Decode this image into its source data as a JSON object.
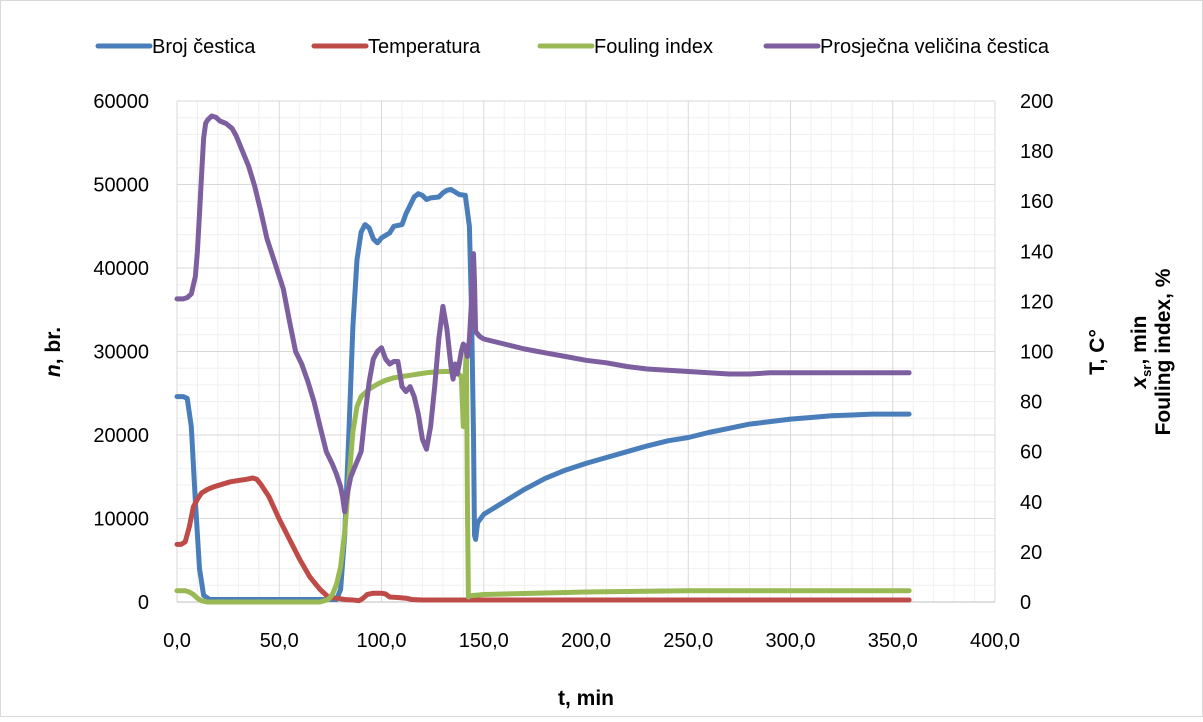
{
  "chart_data": {
    "type": "line",
    "xlabel": "t, min",
    "ylabel_left": {
      "italic": "n",
      "rest": ", br."
    },
    "ylabel_right": {
      "line1": "T, C°",
      "line2_italic": "x",
      "line2_sub": "sr",
      "line2_rest": ", min",
      "line3": "Fouling index, %"
    },
    "x_range": [
      0,
      400
    ],
    "x_ticks": [
      "0,0",
      "50,0",
      "100,0",
      "150,0",
      "200,0",
      "250,0",
      "300,0",
      "350,0",
      "400,0"
    ],
    "y_left_range": [
      0,
      60000
    ],
    "y_left_ticks": [
      "0",
      "10000",
      "20000",
      "30000",
      "40000",
      "50000",
      "60000"
    ],
    "y_right_range": [
      0,
      200
    ],
    "y_right_ticks": [
      "0",
      "20",
      "40",
      "60",
      "80",
      "100",
      "120",
      "140",
      "160",
      "180",
      "200"
    ],
    "grid": true,
    "legend_position": "top",
    "series": [
      {
        "name": "Broj čestica",
        "axis": "left",
        "color": "#4a7ebb",
        "points": [
          [
            0,
            24600
          ],
          [
            3,
            24600
          ],
          [
            5,
            24400
          ],
          [
            7,
            21000
          ],
          [
            9,
            12000
          ],
          [
            11,
            4000
          ],
          [
            13,
            800
          ],
          [
            16,
            300
          ],
          [
            30,
            300
          ],
          [
            50,
            300
          ],
          [
            70,
            300
          ],
          [
            78,
            300
          ],
          [
            80,
            1500
          ],
          [
            82,
            8000
          ],
          [
            84,
            20000
          ],
          [
            86,
            33000
          ],
          [
            88,
            41000
          ],
          [
            90,
            44300
          ],
          [
            92,
            45200
          ],
          [
            94,
            44800
          ],
          [
            96,
            43500
          ],
          [
            98,
            43000
          ],
          [
            100,
            43600
          ],
          [
            104,
            44200
          ],
          [
            106,
            45000
          ],
          [
            110,
            45200
          ],
          [
            112,
            46500
          ],
          [
            116,
            48500
          ],
          [
            118,
            48900
          ],
          [
            120,
            48700
          ],
          [
            122,
            48200
          ],
          [
            124,
            48400
          ],
          [
            128,
            48500
          ],
          [
            130,
            49000
          ],
          [
            132,
            49300
          ],
          [
            134,
            49400
          ],
          [
            136,
            49100
          ],
          [
            138,
            48800
          ],
          [
            141,
            48700
          ],
          [
            143,
            45000
          ],
          [
            144,
            35000
          ],
          [
            145,
            20000
          ],
          [
            145.5,
            8000
          ],
          [
            146,
            7500
          ],
          [
            147,
            9500
          ],
          [
            150,
            10500
          ],
          [
            160,
            12000
          ],
          [
            170,
            13500
          ],
          [
            180,
            14800
          ],
          [
            190,
            15800
          ],
          [
            200,
            16600
          ],
          [
            210,
            17300
          ],
          [
            220,
            18000
          ],
          [
            230,
            18700
          ],
          [
            240,
            19300
          ],
          [
            250,
            19700
          ],
          [
            260,
            20300
          ],
          [
            270,
            20800
          ],
          [
            280,
            21300
          ],
          [
            290,
            21600
          ],
          [
            300,
            21900
          ],
          [
            310,
            22100
          ],
          [
            320,
            22300
          ],
          [
            330,
            22400
          ],
          [
            340,
            22500
          ],
          [
            350,
            22500
          ],
          [
            358,
            22500
          ]
        ]
      },
      {
        "name": "Temperatura",
        "axis": "right",
        "color": "#be4b48",
        "points": [
          [
            0,
            23
          ],
          [
            2,
            23
          ],
          [
            4,
            24
          ],
          [
            6,
            30
          ],
          [
            8,
            38
          ],
          [
            10,
            41
          ],
          [
            12,
            43.5
          ],
          [
            15,
            45
          ],
          [
            18,
            46
          ],
          [
            22,
            47
          ],
          [
            26,
            48
          ],
          [
            30,
            48.5
          ],
          [
            34,
            49
          ],
          [
            37,
            49.5
          ],
          [
            39,
            49
          ],
          [
            41,
            47
          ],
          [
            45,
            42
          ],
          [
            50,
            33
          ],
          [
            55,
            25
          ],
          [
            60,
            17
          ],
          [
            65,
            10
          ],
          [
            70,
            5
          ],
          [
            74,
            2
          ],
          [
            78,
            1.5
          ],
          [
            82,
            1
          ],
          [
            86,
            0.8
          ],
          [
            89,
            0.5
          ],
          [
            91,
            1.5
          ],
          [
            93,
            3
          ],
          [
            96,
            3.5
          ],
          [
            100,
            3.5
          ],
          [
            102,
            3.2
          ],
          [
            104,
            2
          ],
          [
            108,
            1.8
          ],
          [
            112,
            1.5
          ],
          [
            115,
            1
          ],
          [
            120,
            0.8
          ],
          [
            130,
            0.8
          ],
          [
            140,
            0.8
          ],
          [
            150,
            0.8
          ],
          [
            200,
            0.8
          ],
          [
            250,
            0.8
          ],
          [
            300,
            0.8
          ],
          [
            358,
            0.8
          ]
        ]
      },
      {
        "name": "Fouling index",
        "axis": "right",
        "color": "#98b954",
        "points": [
          [
            0,
            4.5
          ],
          [
            2,
            4.5
          ],
          [
            4,
            4.5
          ],
          [
            6,
            4
          ],
          [
            8,
            3
          ],
          [
            10,
            1.5
          ],
          [
            12,
            0.5
          ],
          [
            15,
            0
          ],
          [
            30,
            0
          ],
          [
            50,
            0
          ],
          [
            70,
            0
          ],
          [
            74,
            1
          ],
          [
            76,
            3
          ],
          [
            78,
            7
          ],
          [
            80,
            14
          ],
          [
            82,
            28
          ],
          [
            84,
            48
          ],
          [
            86,
            68
          ],
          [
            88,
            78
          ],
          [
            90,
            82
          ],
          [
            94,
            85
          ],
          [
            98,
            87
          ],
          [
            102,
            88.5
          ],
          [
            106,
            89.5
          ],
          [
            110,
            90
          ],
          [
            114,
            90.5
          ],
          [
            118,
            91
          ],
          [
            122,
            91.5
          ],
          [
            126,
            91.8
          ],
          [
            130,
            92
          ],
          [
            134,
            92
          ],
          [
            137,
            91.5
          ],
          [
            139,
            90
          ],
          [
            140,
            70
          ],
          [
            141,
            92
          ],
          [
            141.5,
            100
          ],
          [
            142,
            40
          ],
          [
            142.5,
            2
          ],
          [
            143.5,
            2.5
          ],
          [
            150,
            3
          ],
          [
            200,
            4
          ],
          [
            250,
            4.5
          ],
          [
            300,
            4.5
          ],
          [
            358,
            4.5
          ]
        ]
      },
      {
        "name": "Prosječna veličina čestica",
        "axis": "right",
        "color": "#7d5fa0",
        "points": [
          [
            0,
            121
          ],
          [
            3,
            121
          ],
          [
            5,
            121.5
          ],
          [
            7,
            123
          ],
          [
            9,
            130
          ],
          [
            10,
            140
          ],
          [
            11,
            155
          ],
          [
            12,
            170
          ],
          [
            13,
            185
          ],
          [
            14,
            191
          ],
          [
            15,
            192.5
          ],
          [
            17,
            194
          ],
          [
            19,
            193.5
          ],
          [
            21,
            192
          ],
          [
            24,
            191
          ],
          [
            27,
            189
          ],
          [
            29,
            186
          ],
          [
            32,
            180
          ],
          [
            35,
            174
          ],
          [
            38,
            166
          ],
          [
            41,
            156
          ],
          [
            44,
            145
          ],
          [
            48,
            135
          ],
          [
            52,
            125
          ],
          [
            55,
            112
          ],
          [
            58,
            100
          ],
          [
            61,
            95
          ],
          [
            64,
            88
          ],
          [
            67,
            80
          ],
          [
            70,
            70
          ],
          [
            73,
            60
          ],
          [
            76,
            55
          ],
          [
            78,
            51
          ],
          [
            80,
            46
          ],
          [
            81,
            42
          ],
          [
            82,
            36
          ],
          [
            83,
            42
          ],
          [
            85,
            50
          ],
          [
            87,
            54
          ],
          [
            90,
            60
          ],
          [
            92,
            75
          ],
          [
            94,
            88
          ],
          [
            96,
            97
          ],
          [
            98,
            100
          ],
          [
            100,
            101.5
          ],
          [
            102,
            97
          ],
          [
            104,
            95
          ],
          [
            106,
            96
          ],
          [
            108,
            96
          ],
          [
            110,
            86
          ],
          [
            112,
            84
          ],
          [
            114,
            86
          ],
          [
            116,
            82
          ],
          [
            118,
            75
          ],
          [
            120,
            65
          ],
          [
            122,
            61
          ],
          [
            124,
            70
          ],
          [
            126,
            86
          ],
          [
            128,
            105
          ],
          [
            130,
            118
          ],
          [
            132,
            109
          ],
          [
            134,
            94
          ],
          [
            135,
            89
          ],
          [
            136,
            95
          ],
          [
            137,
            91
          ],
          [
            138,
            95
          ],
          [
            139,
            100
          ],
          [
            140,
            103
          ],
          [
            141,
            102
          ],
          [
            142,
            98
          ],
          [
            143,
            105
          ],
          [
            144,
            120
          ],
          [
            145,
            139
          ],
          [
            145.5,
            128
          ],
          [
            146,
            108
          ],
          [
            148,
            106
          ],
          [
            150,
            105
          ],
          [
            155,
            104
          ],
          [
            160,
            103
          ],
          [
            170,
            101
          ],
          [
            180,
            99.5
          ],
          [
            190,
            98
          ],
          [
            200,
            96.5
          ],
          [
            210,
            95.5
          ],
          [
            220,
            94
          ],
          [
            230,
            93
          ],
          [
            240,
            92.5
          ],
          [
            250,
            92
          ],
          [
            260,
            91.5
          ],
          [
            270,
            91
          ],
          [
            280,
            91
          ],
          [
            290,
            91.5
          ],
          [
            300,
            91.5
          ],
          [
            310,
            91.5
          ],
          [
            320,
            91.5
          ],
          [
            330,
            91.5
          ],
          [
            340,
            91.5
          ],
          [
            350,
            91.5
          ],
          [
            358,
            91.5
          ]
        ]
      }
    ]
  }
}
